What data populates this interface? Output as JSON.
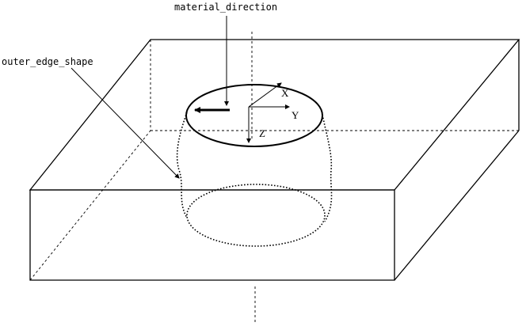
{
  "labels": {
    "material_direction": "material_direction",
    "outer_edge_shape": "outer_edge_shape"
  },
  "axes": {
    "x": "X",
    "y": "Y",
    "z": "Z"
  }
}
